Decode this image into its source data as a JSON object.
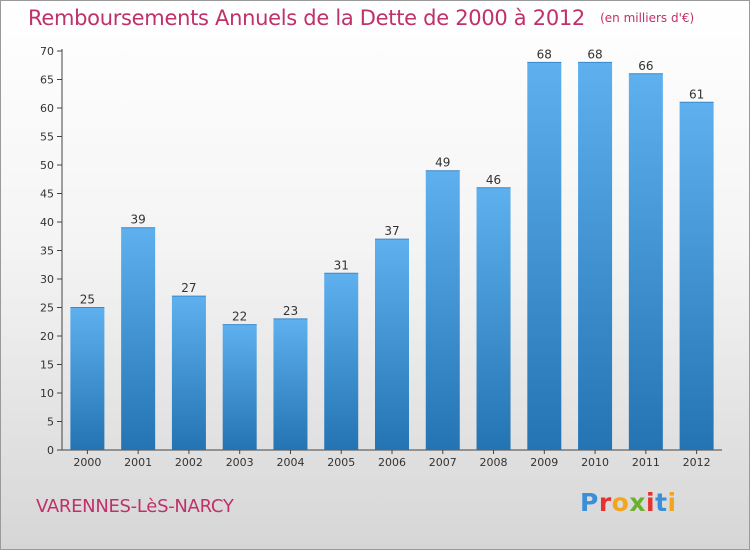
{
  "title": "Remboursements Annuels de la Dette de 2000 à 2012",
  "unit": "(en milliers d'€)",
  "commune": "VARENNES-LèS-NARCY",
  "logo": {
    "letters": [
      "P",
      "r",
      "o",
      "x",
      "i",
      "t",
      "i"
    ],
    "colors": [
      "#3a8fd6",
      "#e8302e",
      "#f2a51e",
      "#6bb02f",
      "#e8302e",
      "#3a8fd6",
      "#f2a51e"
    ]
  },
  "colors": {
    "title": "#c0306a",
    "bar_light": "#5eb0ee",
    "bar_dark": "#2474b4"
  },
  "chart_data": {
    "type": "bar",
    "categories": [
      "2000",
      "2001",
      "2002",
      "2003",
      "2004",
      "2005",
      "2006",
      "2007",
      "2008",
      "2009",
      "2010",
      "2011",
      "2012"
    ],
    "values": [
      25,
      39,
      27,
      22,
      23,
      31,
      37,
      49,
      46,
      68,
      68,
      66,
      61
    ],
    "ylim": [
      0,
      70
    ],
    "yticks": [
      0,
      5,
      10,
      15,
      20,
      25,
      30,
      35,
      40,
      45,
      50,
      55,
      60,
      65,
      70
    ],
    "grid": false,
    "data_labels": true
  }
}
